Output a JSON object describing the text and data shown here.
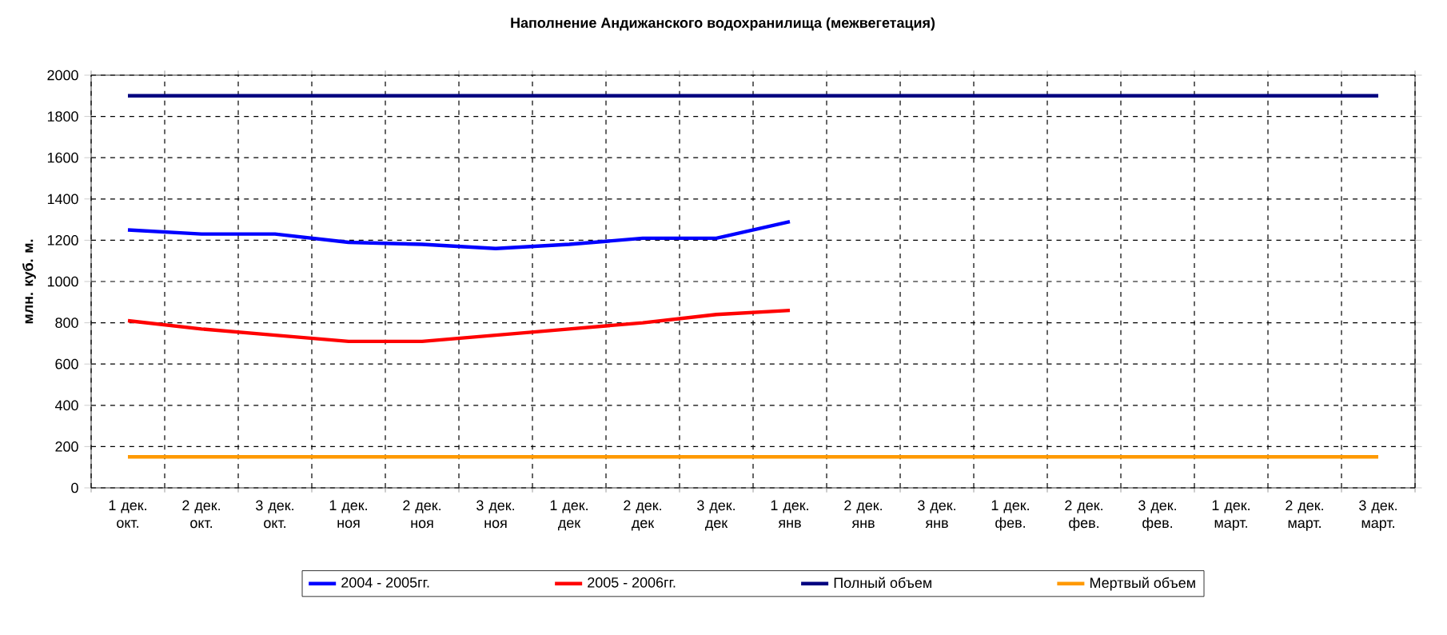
{
  "chart_data": {
    "type": "line",
    "title": "Наполнение Андижанского водохранилища (межвегетация)",
    "ylabel": "млн. куб. м.",
    "categories": [
      "1 дек. окт.",
      "2 дек. окт.",
      "3 дек. окт.",
      "1 дек. ноя",
      "2 дек. ноя",
      "3 дек. ноя",
      "1 дек. дек",
      "2 дек. дек",
      "3 дек. дек",
      "1 дек. янв",
      "2 дек. янв",
      "3 дек. янв",
      "1 дек. фев.",
      "2 дек. фев.",
      "3 дек. фев.",
      "1 дек. март.",
      "2 дек. март.",
      "3 дек. март."
    ],
    "ylim": [
      0,
      2000
    ],
    "yticks": [
      0,
      200,
      400,
      600,
      800,
      1000,
      1200,
      1400,
      1600,
      1800,
      2000
    ],
    "grid": true,
    "legend": "bottom",
    "marker": "none",
    "line_style": "solid",
    "series": [
      {
        "name": "2004 - 2005гг.",
        "color": "#0000ff",
        "values": [
          1250,
          1230,
          1230,
          1190,
          1180,
          1160,
          1180,
          1210,
          1210,
          1290,
          null,
          null,
          null,
          null,
          null,
          null,
          null,
          null
        ]
      },
      {
        "name": "2005 - 2006гг.",
        "color": "#ff0000",
        "values": [
          810,
          770,
          740,
          710,
          710,
          740,
          770,
          800,
          840,
          860,
          null,
          null,
          null,
          null,
          null,
          null,
          null,
          null
        ]
      },
      {
        "name": "Полный объем",
        "color": "#000080",
        "values": [
          1900,
          1900,
          1900,
          1900,
          1900,
          1900,
          1900,
          1900,
          1900,
          1900,
          1900,
          1900,
          1900,
          1900,
          1900,
          1900,
          1900,
          1900
        ]
      },
      {
        "name": "Мертвый объем",
        "color": "#ff9900",
        "values": [
          150,
          150,
          150,
          150,
          150,
          150,
          150,
          150,
          150,
          150,
          150,
          150,
          150,
          150,
          150,
          150,
          150,
          150
        ]
      }
    ]
  }
}
